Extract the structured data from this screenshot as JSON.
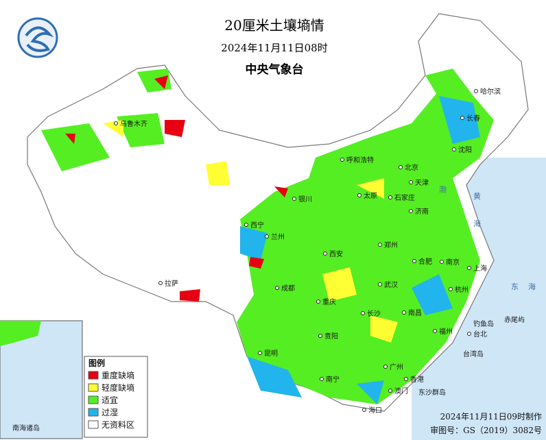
{
  "header": {
    "title": "20厘米土壤墒情",
    "date": "2024年11月11日08时",
    "agency": "中央气象台"
  },
  "legend": {
    "title": "图例",
    "items": [
      {
        "label": "重度缺墒",
        "color": "#e60012"
      },
      {
        "label": "轻度缺墒",
        "color": "#ffff33"
      },
      {
        "label": "适宜",
        "color": "#55ee22"
      },
      {
        "label": "过湿",
        "color": "#22b4ec"
      },
      {
        "label": "无资料区",
        "color": "#ffffff"
      }
    ]
  },
  "cities": [
    "哈尔滨",
    "长春",
    "沈阳",
    "呼和浩特",
    "北京",
    "天津",
    "石家庄",
    "太原",
    "济南",
    "银川",
    "西宁",
    "兰州",
    "西安",
    "郑州",
    "合肥",
    "南京",
    "上海",
    "杭州",
    "武汉",
    "成都",
    "重庆",
    "长沙",
    "南昌",
    "福州",
    "台北",
    "贵阳",
    "昆明",
    "南宁",
    "广州",
    "香港",
    "澳门",
    "海口",
    "拉萨",
    "乌鲁木齐"
  ],
  "places": [
    "钓鱼岛",
    "赤尾屿",
    "台湾岛",
    "东沙群岛",
    "黄",
    "海",
    "东",
    "海",
    "渤"
  ],
  "inset_label": "南海诸岛",
  "footer": {
    "made": "2024年11月11日09时制作",
    "review": "审图号：GS（2019）3082号"
  }
}
